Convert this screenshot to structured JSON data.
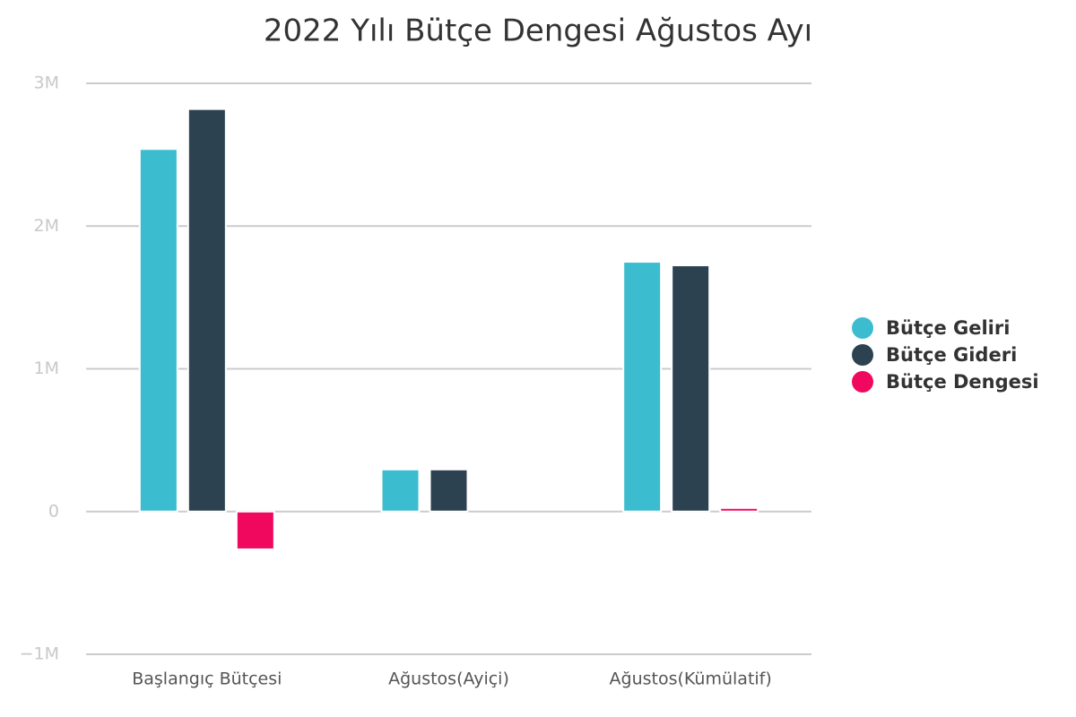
{
  "chart_data": {
    "type": "bar",
    "title": "2022 Yılı Bütçe Dengesi Ağustos Ayı",
    "categories": [
      "Başlangıç Bütçesi",
      "Ağustos(Ayiçi)",
      "Ağustos(Kümülatif)"
    ],
    "series": [
      {
        "name": "Bütçe Geliri",
        "color": "#3bbccf",
        "values": [
          2540000,
          295000,
          1750000
        ]
      },
      {
        "name": "Bütçe Gideri",
        "color": "#2c4251",
        "values": [
          2820000,
          295000,
          1725000
        ]
      },
      {
        "name": "Bütçe Dengesi",
        "color": "#f0085f",
        "values": [
          -265000,
          0,
          25000
        ]
      }
    ],
    "ylim": [
      -1000000,
      3000000
    ],
    "yticks": [
      {
        "value": -1000000,
        "label": "−1M"
      },
      0,
      {
        "value": 1000000,
        "label": "1M"
      },
      {
        "value": 2000000,
        "label": "2M"
      },
      {
        "value": 3000000,
        "label": "3M"
      }
    ],
    "grid": true,
    "legend": "right"
  }
}
